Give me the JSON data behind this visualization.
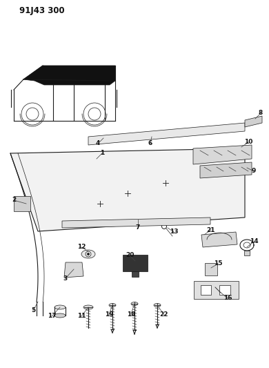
{
  "title": "91J43 300",
  "bg_color": "#ffffff",
  "line_color": "#1a1a1a",
  "fig_width": 3.9,
  "fig_height": 5.33,
  "dpi": 100
}
